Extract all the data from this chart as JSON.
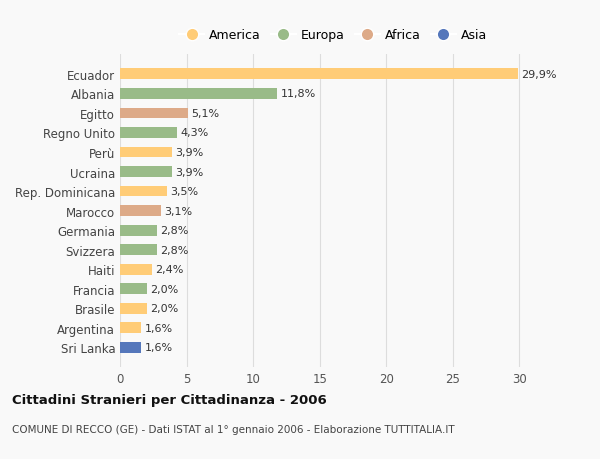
{
  "categories": [
    "Ecuador",
    "Albania",
    "Egitto",
    "Regno Unito",
    "Perù",
    "Ucraina",
    "Rep. Dominicana",
    "Marocco",
    "Germania",
    "Svizzera",
    "Haiti",
    "Francia",
    "Brasile",
    "Argentina",
    "Sri Lanka"
  ],
  "values": [
    29.9,
    11.8,
    5.1,
    4.3,
    3.9,
    3.9,
    3.5,
    3.1,
    2.8,
    2.8,
    2.4,
    2.0,
    2.0,
    1.6,
    1.6
  ],
  "labels": [
    "29,9%",
    "11,8%",
    "5,1%",
    "4,3%",
    "3,9%",
    "3,9%",
    "3,5%",
    "3,1%",
    "2,8%",
    "2,8%",
    "2,4%",
    "2,0%",
    "2,0%",
    "1,6%",
    "1,6%"
  ],
  "continents": [
    "America",
    "Europa",
    "Africa",
    "Europa",
    "America",
    "Europa",
    "America",
    "Africa",
    "Europa",
    "Europa",
    "America",
    "Europa",
    "America",
    "America",
    "Asia"
  ],
  "colors": {
    "America": "#FFCC77",
    "Europa": "#99BB88",
    "Africa": "#DDAA88",
    "Asia": "#5577BB"
  },
  "legend_order": [
    "America",
    "Europa",
    "Africa",
    "Asia"
  ],
  "title": "Cittadini Stranieri per Cittadinanza - 2006",
  "subtitle": "COMUNE DI RECCO (GE) - Dati ISTAT al 1° gennaio 2006 - Elaborazione TUTTITALIA.IT",
  "xlim": [
    0,
    32
  ],
  "xticks": [
    0,
    5,
    10,
    15,
    20,
    25,
    30
  ],
  "background_color": "#f9f9f9",
  "grid_color": "#dddddd",
  "bar_height": 0.55,
  "label_fontsize": 8,
  "ytick_fontsize": 8.5,
  "xtick_fontsize": 8.5
}
